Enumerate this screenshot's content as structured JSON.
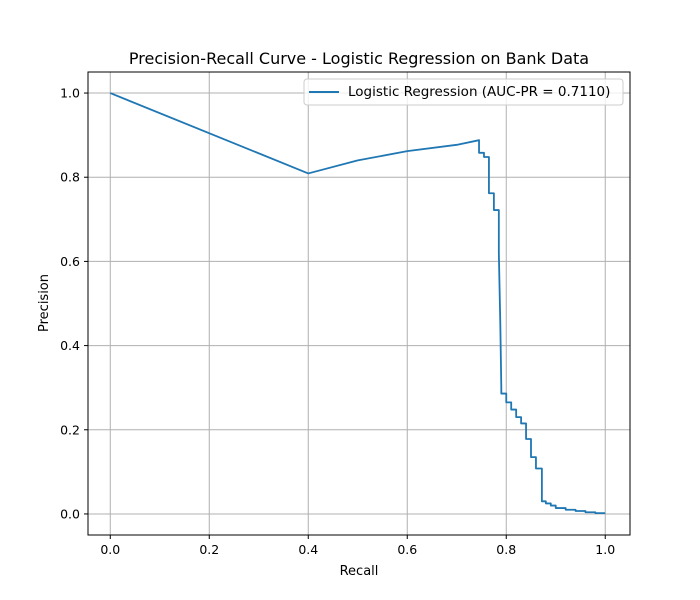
{
  "chart_data": {
    "type": "line",
    "title": "Precision-Recall Curve - Logistic Regression on Bank Data",
    "xlabel": "Recall",
    "ylabel": "Precision",
    "xlim": [
      -0.045,
      1.05
    ],
    "ylim": [
      -0.05,
      1.05
    ],
    "x_ticks": [
      0.0,
      0.2,
      0.4,
      0.6,
      0.8,
      1.0
    ],
    "x_tick_labels": [
      "0.0",
      "0.2",
      "0.4",
      "0.6",
      "0.8",
      "1.0"
    ],
    "y_ticks": [
      0.0,
      0.2,
      0.4,
      0.6,
      0.8,
      1.0
    ],
    "y_tick_labels": [
      "0.0",
      "0.2",
      "0.4",
      "0.6",
      "0.8",
      "1.0"
    ],
    "grid": true,
    "legend_position": "top-right",
    "series": [
      {
        "name": "Logistic Regression (AUC-PR = 0.7110)",
        "color": "#1f77b4",
        "x": [
          0.0,
          0.4,
          0.5,
          0.6,
          0.7,
          0.745,
          0.745,
          0.755,
          0.755,
          0.765,
          0.765,
          0.775,
          0.775,
          0.785,
          0.785,
          0.788,
          0.79,
          0.79,
          0.8,
          0.8,
          0.81,
          0.81,
          0.82,
          0.82,
          0.83,
          0.83,
          0.84,
          0.84,
          0.85,
          0.85,
          0.86,
          0.86,
          0.872,
          0.872,
          0.88,
          0.88,
          0.89,
          0.89,
          0.9,
          0.9,
          0.92,
          0.92,
          0.94,
          0.94,
          0.96,
          0.96,
          0.98,
          0.98,
          1.0
        ],
        "y": [
          1.0,
          0.809,
          0.84,
          0.862,
          0.877,
          0.888,
          0.858,
          0.858,
          0.848,
          0.848,
          0.762,
          0.762,
          0.722,
          0.722,
          0.62,
          0.45,
          0.3,
          0.286,
          0.286,
          0.265,
          0.265,
          0.248,
          0.248,
          0.23,
          0.23,
          0.215,
          0.215,
          0.178,
          0.178,
          0.135,
          0.135,
          0.108,
          0.108,
          0.03,
          0.03,
          0.025,
          0.025,
          0.02,
          0.02,
          0.014,
          0.014,
          0.01,
          0.01,
          0.007,
          0.007,
          0.004,
          0.004,
          0.002,
          0.002
        ]
      }
    ]
  }
}
